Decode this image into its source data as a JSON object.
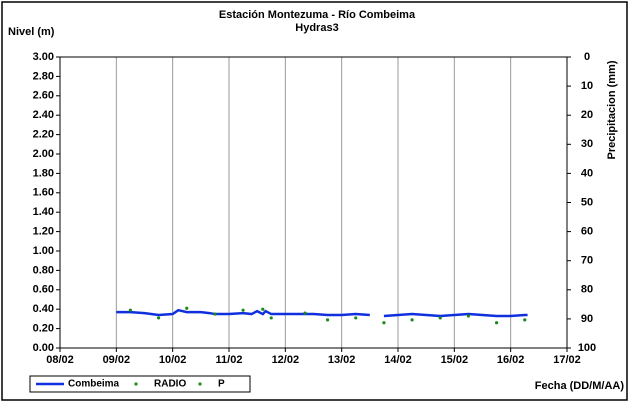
{
  "chart_data": {
    "type": "line",
    "title": "Estación Montezuma - Río Combeima",
    "subtitle": "Hydras3",
    "ylabel": "Nivel (m)",
    "y2label": "Precipitacion (mm)",
    "xlabel": "Fecha (DD/M/AA)",
    "xlim": [
      8,
      17
    ],
    "xticks": [
      {
        "value": 8,
        "label": "08/02"
      },
      {
        "value": 9,
        "label": "09/02"
      },
      {
        "value": 10,
        "label": "10/02"
      },
      {
        "value": 11,
        "label": "11/02"
      },
      {
        "value": 12,
        "label": "12/02"
      },
      {
        "value": 13,
        "label": "13/02"
      },
      {
        "value": 14,
        "label": "14/02"
      },
      {
        "value": 15,
        "label": "15/02"
      },
      {
        "value": 16,
        "label": "16/02"
      },
      {
        "value": 17,
        "label": "17/02"
      }
    ],
    "ylim": [
      0,
      3
    ],
    "yticks": [
      {
        "value": 0,
        "label": "0.00"
      },
      {
        "value": 0.2,
        "label": "0.20"
      },
      {
        "value": 0.4,
        "label": "0.40"
      },
      {
        "value": 0.6,
        "label": "0.60"
      },
      {
        "value": 0.8,
        "label": "0.80"
      },
      {
        "value": 1,
        "label": "1.00"
      },
      {
        "value": 1.2,
        "label": "1.20"
      },
      {
        "value": 1.4,
        "label": "1.40"
      },
      {
        "value": 1.6,
        "label": "1.60"
      },
      {
        "value": 1.8,
        "label": "1.80"
      },
      {
        "value": 2,
        "label": "2.00"
      },
      {
        "value": 2.2,
        "label": "2.20"
      },
      {
        "value": 2.4,
        "label": "2.40"
      },
      {
        "value": 2.6,
        "label": "2.60"
      },
      {
        "value": 2.8,
        "label": "2.80"
      },
      {
        "value": 3,
        "label": "3.00"
      }
    ],
    "y2lim": [
      100,
      0
    ],
    "y2ticks": [
      0,
      10,
      20,
      30,
      40,
      50,
      60,
      70,
      80,
      90,
      100
    ],
    "grid": "x",
    "series": [
      {
        "name": "Combeima",
        "color": "#1030e0",
        "style": "line",
        "x": [
          9.0,
          9.25,
          9.5,
          9.75,
          10.0,
          10.1,
          10.25,
          10.5,
          10.65,
          10.75,
          11.0,
          11.25,
          11.4,
          11.5,
          11.6,
          11.65,
          11.75,
          12.0,
          12.25,
          12.5,
          12.75,
          13.0,
          13.25,
          13.5,
          13.6,
          13.75,
          14.0,
          14.25,
          14.5,
          14.75,
          15.0,
          15.25,
          15.5,
          15.75,
          16.0,
          16.25,
          16.3
        ],
        "values": [
          0.37,
          0.37,
          0.36,
          0.34,
          0.35,
          0.39,
          0.37,
          0.37,
          0.36,
          0.35,
          0.35,
          0.36,
          0.35,
          0.38,
          0.35,
          0.38,
          0.35,
          0.35,
          0.35,
          0.35,
          0.34,
          0.34,
          0.35,
          0.34,
          null,
          0.33,
          0.34,
          0.35,
          0.34,
          0.33,
          0.34,
          0.35,
          0.34,
          0.33,
          0.33,
          0.34,
          0.34
        ]
      },
      {
        "name": "RADIO",
        "color": "#1a8a1a",
        "style": "dot",
        "x": [
          9.25,
          9.75,
          10.25,
          10.75,
          11.25,
          11.6,
          11.75,
          12.35,
          12.75,
          13.25,
          13.75,
          14.25,
          14.75,
          15.25,
          15.75,
          16.25
        ],
        "values": [
          0.39,
          0.31,
          0.41,
          0.35,
          0.39,
          0.4,
          0.31,
          0.36,
          0.29,
          0.31,
          0.26,
          0.29,
          0.31,
          0.33,
          0.26,
          0.29
        ]
      },
      {
        "name": "P",
        "color": "#1a8a1a",
        "style": "dot",
        "axis": "y2",
        "x": [],
        "values": []
      }
    ]
  }
}
